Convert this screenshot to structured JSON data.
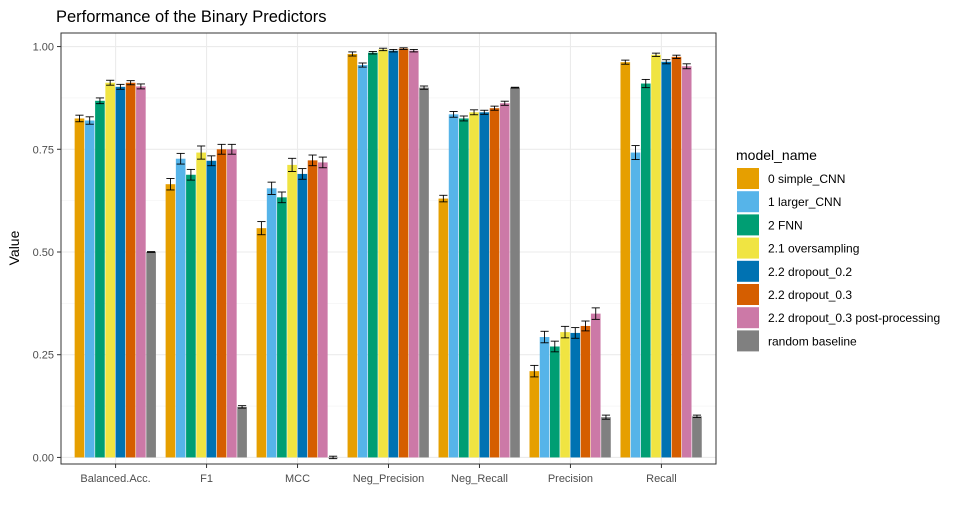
{
  "chart_data": {
    "type": "bar",
    "title": "Performance of the Binary Predictors",
    "xlabel": "",
    "ylabel": "Value",
    "ylim": [
      -0.016,
      1.033
    ],
    "yticks": [
      "0.00",
      "0.25",
      "0.50",
      "0.75",
      "1.00"
    ],
    "ytick_values": [
      0,
      0.25,
      0.5,
      0.75,
      1.0
    ],
    "grid": true,
    "legend_title": "model_name",
    "legend_position": "right",
    "categories": [
      "Balanced.Acc.",
      "F1",
      "MCC",
      "Neg_Precision",
      "Neg_Recall",
      "Precision",
      "Recall"
    ],
    "series": [
      {
        "name": "0 simple_CNN",
        "color": "#E69F00",
        "values": [
          0.825,
          0.665,
          0.558,
          0.982,
          0.63,
          0.21,
          0.962
        ],
        "errors": [
          0.008,
          0.014,
          0.016,
          0.005,
          0.008,
          0.014,
          0.005
        ]
      },
      {
        "name": "1 larger_CNN",
        "color": "#56B4E9",
        "values": [
          0.82,
          0.727,
          0.655,
          0.955,
          0.835,
          0.293,
          0.742
        ],
        "errors": [
          0.009,
          0.013,
          0.015,
          0.005,
          0.007,
          0.014,
          0.017
        ]
      },
      {
        "name": "2 FNN",
        "color": "#009E73",
        "values": [
          0.868,
          0.688,
          0.633,
          0.985,
          0.825,
          0.27,
          0.91
        ],
        "errors": [
          0.007,
          0.013,
          0.013,
          0.003,
          0.006,
          0.013,
          0.01
        ]
      },
      {
        "name": "2.1 oversampling",
        "color": "#F0E442",
        "values": [
          0.912,
          0.742,
          0.712,
          0.993,
          0.84,
          0.305,
          0.98
        ],
        "errors": [
          0.006,
          0.016,
          0.016,
          0.003,
          0.006,
          0.014,
          0.004
        ]
      },
      {
        "name": "2.2 dropout_0.2",
        "color": "#0072B2",
        "values": [
          0.902,
          0.722,
          0.69,
          0.99,
          0.84,
          0.303,
          0.963
        ],
        "errors": [
          0.006,
          0.012,
          0.013,
          0.003,
          0.005,
          0.013,
          0.005
        ]
      },
      {
        "name": "2.2 dropout_0.3",
        "color": "#D55E00",
        "values": [
          0.912,
          0.75,
          0.723,
          0.995,
          0.85,
          0.32,
          0.975
        ],
        "errors": [
          0.005,
          0.012,
          0.013,
          0.002,
          0.005,
          0.012,
          0.004
        ]
      },
      {
        "name": "2.2 dropout_0.3 post-processing",
        "color": "#CC79A7",
        "values": [
          0.903,
          0.75,
          0.718,
          0.99,
          0.862,
          0.35,
          0.952
        ],
        "errors": [
          0.006,
          0.012,
          0.013,
          0.003,
          0.005,
          0.014,
          0.006
        ]
      },
      {
        "name": "random baseline",
        "color": "#808080",
        "values": [
          0.5,
          0.123,
          0.0,
          0.9,
          0.9,
          0.098,
          0.1
        ],
        "errors": [
          0.001,
          0.003,
          0.003,
          0.004,
          0.001,
          0.005,
          0.003
        ]
      }
    ]
  }
}
